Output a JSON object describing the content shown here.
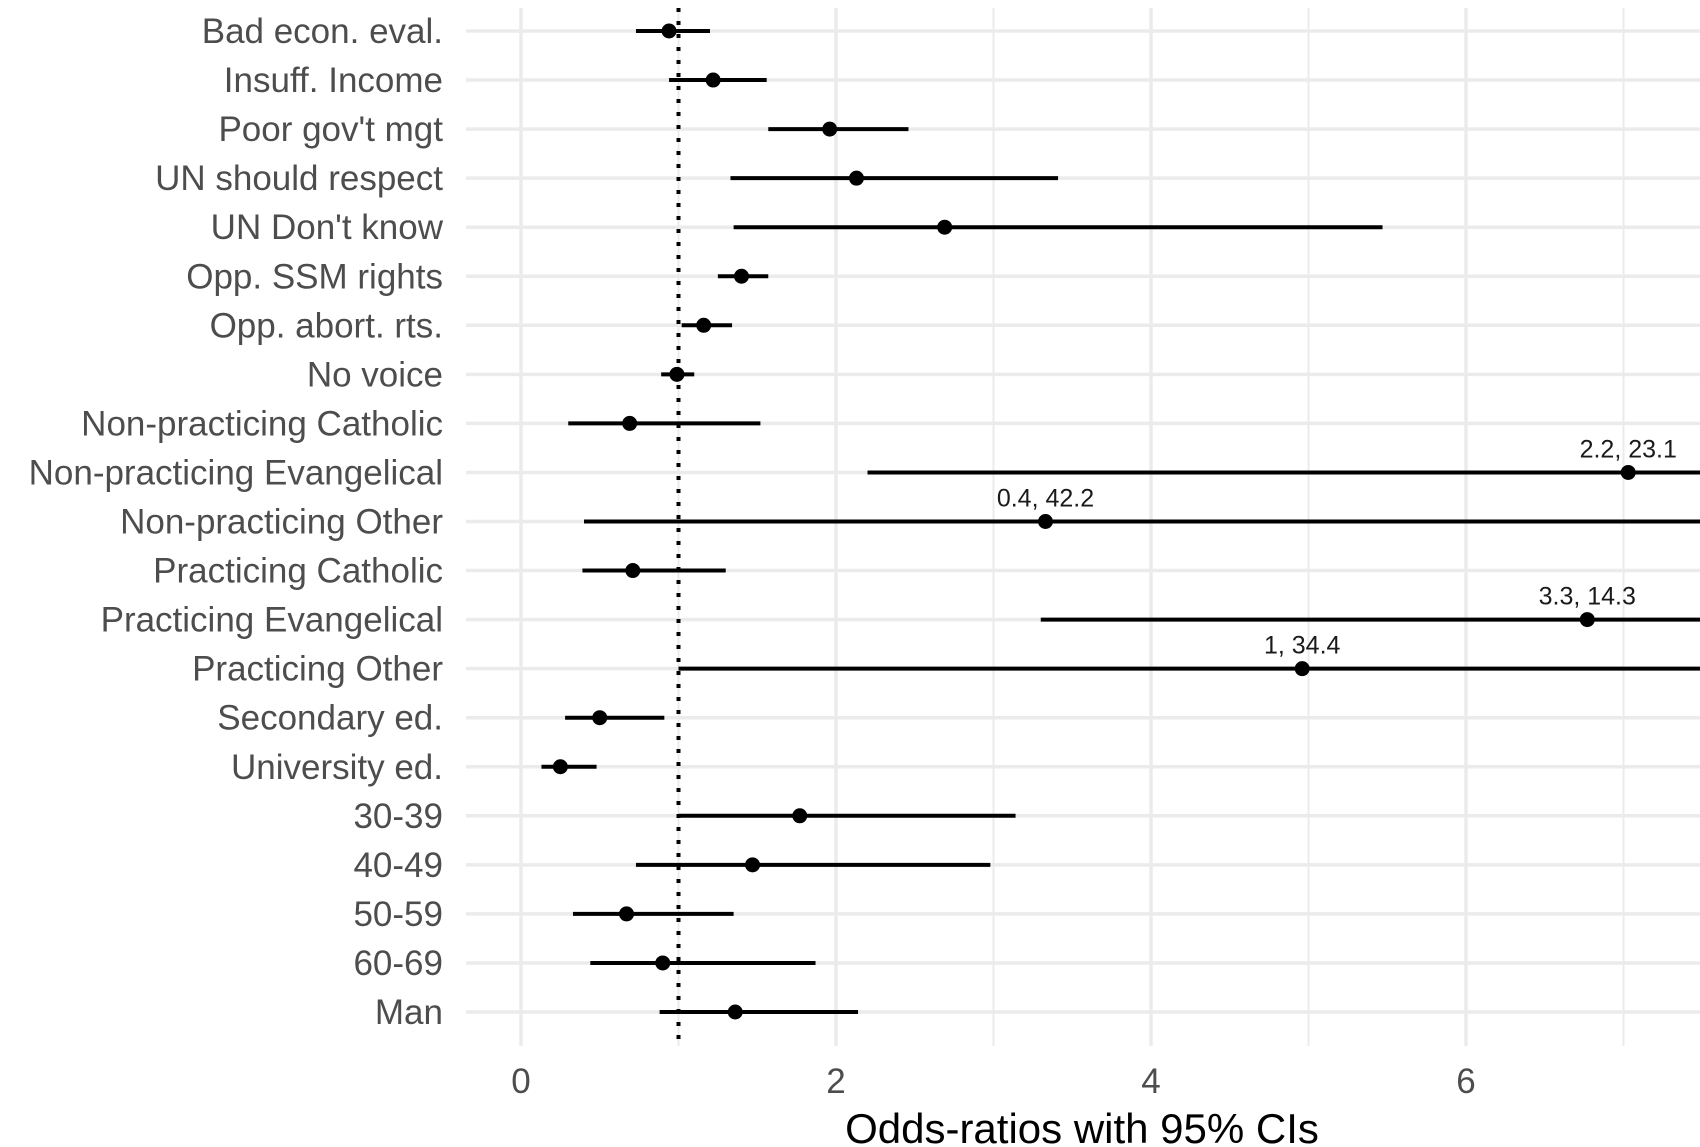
{
  "chart_data": {
    "type": "forest",
    "xlabel": "Odds-ratios with 95% CIs",
    "xlim": [
      -0.4,
      7.5
    ],
    "xticks": [
      0,
      2,
      4,
      6
    ],
    "reference_line": 1,
    "grid": true,
    "colors": {
      "marks": "#000000",
      "grid": "#ebebeb",
      "labels": "#4d4d4d"
    },
    "categories": [
      "Bad econ. eval.",
      "Insuff. Income",
      "Poor gov't mgt",
      "UN should respect",
      "UN Don't know",
      "Opp. SSM rights",
      "Opp. abort. rts.",
      "No voice",
      "Non-practicing Catholic",
      "Non-practicing Evangelical",
      "Non-practicing Other",
      "Practicing Catholic",
      "Practicing Evangelical",
      "Practicing Other",
      "Secondary ed.",
      "University ed.",
      "30-39",
      "40-49",
      "50-59",
      "60-69",
      "Man"
    ],
    "estimates": [
      0.94,
      1.22,
      1.96,
      2.13,
      2.69,
      1.4,
      1.16,
      0.99,
      0.69,
      7.03,
      3.33,
      0.71,
      6.77,
      4.96,
      0.5,
      0.25,
      1.77,
      1.47,
      0.67,
      0.9,
      1.36
    ],
    "ci_lower": [
      0.73,
      0.94,
      1.57,
      1.33,
      1.35,
      1.25,
      1.02,
      0.89,
      0.3,
      2.2,
      0.4,
      0.39,
      3.3,
      1.0,
      0.28,
      0.13,
      1.0,
      0.73,
      0.33,
      0.44,
      0.88
    ],
    "ci_upper": [
      1.2,
      1.56,
      2.46,
      3.41,
      5.47,
      1.57,
      1.34,
      1.1,
      1.52,
      23.1,
      42.2,
      1.3,
      14.3,
      34.4,
      0.91,
      0.48,
      3.14,
      2.98,
      1.35,
      1.87,
      2.14
    ],
    "annotations": [
      {
        "category": "Non-practicing Evangelical",
        "text": "2.2, 23.1"
      },
      {
        "category": "Non-practicing Other",
        "text": "0.4, 42.2"
      },
      {
        "category": "Practicing Evangelical",
        "text": "3.3, 14.3"
      },
      {
        "category": "Practicing Other",
        "text": "1, 34.4"
      }
    ]
  }
}
